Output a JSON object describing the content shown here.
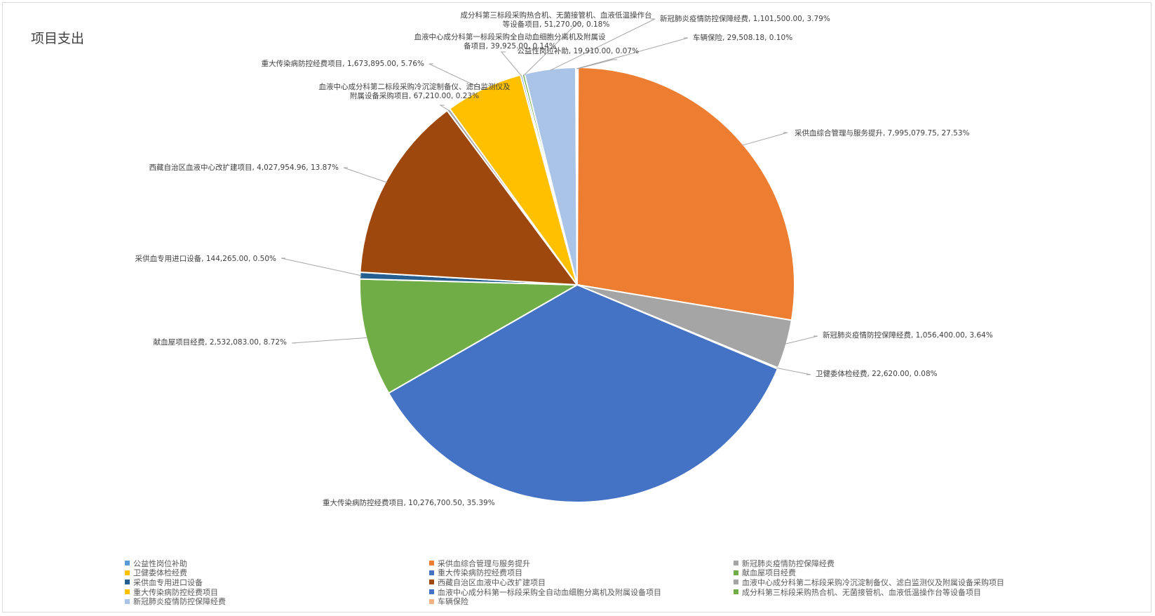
{
  "chart_data": {
    "type": "pie",
    "title": "项目支出",
    "categories": [
      "公益性岗位补助",
      "采供血综合管理与服务提升",
      "新冠肺炎疫情防控保障经费",
      "卫健委体检经费",
      "重大传染病防控经费项目",
      "献血屋项目经费",
      "采供血专用进口设备",
      "西藏自治区血液中心改扩建项目",
      "血液中心成分科第二标段采购冷沉淀制备仪、滤白监测仪及附属设备采购项目",
      "重大传染病防控经费项目",
      "血液中心成分科第一标段采购全自动血细胞分离机及附属设备项目",
      "成分科第三标段采购热合机、无菌接管机、血液低温操作台等设备项目",
      "新冠肺炎疫情防控保障经费",
      "车辆保险"
    ],
    "values": [
      19910.0,
      7995079.75,
      1056400.0,
      22620.0,
      10276700.5,
      2532083.0,
      144265.0,
      4027954.96,
      67210.0,
      1673895.0,
      39925.0,
      51270.0,
      1101500.0,
      29508.18
    ],
    "percent_labels": [
      "0.07%",
      "27.53%",
      "3.64%",
      "0.08%",
      "35.39%",
      "8.72%",
      "0.50%",
      "13.87%",
      "0.23%",
      "5.76%",
      "0.14%",
      "0.18%",
      "3.79%",
      "0.10%"
    ],
    "data_labels": [
      [
        "公益性岗位补助, 19,910.00, 0.07%"
      ],
      [
        "采供血综合管理与服务提升, 7,995,079.75, 27.53%"
      ],
      [
        "新冠肺炎疫情防控保障经费, 1,056,400.00, 3.64%"
      ],
      [
        "卫健委体检经费, 22,620.00, 0.08%"
      ],
      [
        "重大传染病防控经费项目, 10,276,700.50, 35.39%"
      ],
      [
        "献血屋项目经费, 2,532,083.00, 8.72%"
      ],
      [
        "采供血专用进口设备, 144,265.00, 0.50%"
      ],
      [
        "西藏自治区血液中心改扩建项目, 4,027,954.96, 13.87%"
      ],
      [
        "血液中心成分科第二标段采购冷沉淀制备仪、滤白监测仪及",
        "附属设备采购项目, 67,210.00, 0.23%"
      ],
      [
        "重大传染病防控经费项目, 1,673,895.00, 5.76%"
      ],
      [
        "血液中心成分科第一标段采购全自动血细胞分离机及附属设",
        "备项目, 39,925.00, 0.14%"
      ],
      [
        "成分科第三标段采购热合机、无菌接管机、血液低温操作台",
        "等设备项目, 51,270.00, 0.18%"
      ],
      [
        "新冠肺炎疫情防控保障经费, 1,101,500.00, 3.79%"
      ],
      [
        "车辆保险, 29,508.18, 0.10%"
      ]
    ],
    "colors": [
      "#5B9BD5",
      "#ED7D31",
      "#A5A5A5",
      "#FFC000",
      "#4472C4",
      "#70AD47",
      "#255E91",
      "#9E480E",
      "#A5A5A5",
      "#FFC000",
      "#4472C4",
      "#70AD47",
      "#A9C4E6",
      "#F4B183"
    ],
    "legend_position": "bottom"
  }
}
